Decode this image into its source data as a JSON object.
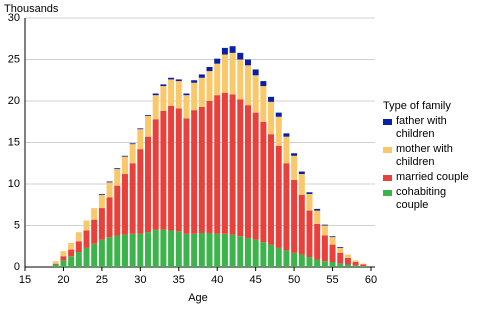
{
  "chart_data": {
    "type": "stacked-bar",
    "y_axis_label": "Thousands",
    "x_axis_label": "Age",
    "legend_title": "Type of family",
    "x": [
      19,
      20,
      21,
      22,
      23,
      24,
      25,
      26,
      27,
      28,
      29,
      30,
      31,
      32,
      33,
      34,
      35,
      36,
      37,
      38,
      39,
      40,
      41,
      42,
      43,
      44,
      45,
      46,
      47,
      48,
      49,
      50,
      51,
      52,
      53,
      54,
      55,
      56,
      57,
      58,
      59
    ],
    "series": [
      {
        "name": "cohabiting couple",
        "color": "#3cb44b",
        "values": [
          0.3,
          0.8,
          1.3,
          1.8,
          2.3,
          2.8,
          3.3,
          3.6,
          3.8,
          3.9,
          4.0,
          4.0,
          4.2,
          4.5,
          4.5,
          4.4,
          4.3,
          4.0,
          4.0,
          4.1,
          4.1,
          4.0,
          4.0,
          3.9,
          3.7,
          3.5,
          3.3,
          3.0,
          2.7,
          2.3,
          2.0,
          1.7,
          1.5,
          1.2,
          0.9,
          0.7,
          0.6,
          0.4,
          0.3,
          0.2,
          0.1
        ]
      },
      {
        "name": "married couple",
        "color": "#e8413b",
        "values": [
          0.1,
          0.5,
          0.8,
          1.3,
          2.1,
          2.9,
          3.8,
          4.8,
          6.0,
          7.3,
          8.5,
          10.2,
          11.5,
          13.3,
          14.3,
          15.0,
          14.8,
          13.9,
          14.9,
          15.2,
          15.9,
          16.7,
          17.0,
          16.9,
          16.5,
          16.0,
          15.3,
          14.5,
          13.3,
          12.3,
          10.5,
          8.8,
          7.2,
          5.6,
          4.3,
          3.1,
          2.1,
          1.3,
          0.8,
          0.4,
          0.2
        ]
      },
      {
        "name": "mother with children",
        "color": "#f9c86b",
        "values": [
          0.3,
          0.6,
          0.8,
          1.1,
          1.2,
          1.4,
          1.6,
          1.8,
          2.0,
          2.1,
          2.3,
          2.4,
          2.5,
          2.9,
          3.0,
          3.2,
          3.3,
          2.8,
          3.3,
          3.5,
          3.6,
          3.8,
          4.6,
          5.0,
          4.8,
          4.8,
          4.5,
          4.3,
          3.9,
          3.5,
          3.2,
          2.9,
          2.5,
          2.0,
          1.6,
          1.2,
          0.9,
          0.6,
          0.4,
          0.2,
          0.1
        ]
      },
      {
        "name": "father with children",
        "color": "#0a1fa6",
        "values": [
          0,
          0,
          0,
          0,
          0,
          0,
          0.1,
          0.1,
          0.1,
          0.1,
          0.1,
          0.1,
          0.1,
          0.2,
          0.2,
          0.2,
          0.2,
          0.2,
          0.3,
          0.4,
          0.5,
          0.6,
          0.8,
          0.8,
          0.8,
          0.7,
          0.7,
          0.6,
          0.6,
          0.5,
          0.4,
          0.3,
          0.3,
          0.2,
          0.2,
          0.1,
          0.1,
          0.1,
          0,
          0,
          0
        ]
      }
    ],
    "xlim": [
      15,
      60
    ],
    "xticks": [
      15,
      20,
      25,
      30,
      35,
      40,
      45,
      50,
      55,
      60
    ],
    "ylim": [
      0,
      30
    ],
    "yticks": [
      0,
      5,
      10,
      15,
      20,
      25,
      30
    ],
    "grid": true,
    "legend": "right"
  }
}
